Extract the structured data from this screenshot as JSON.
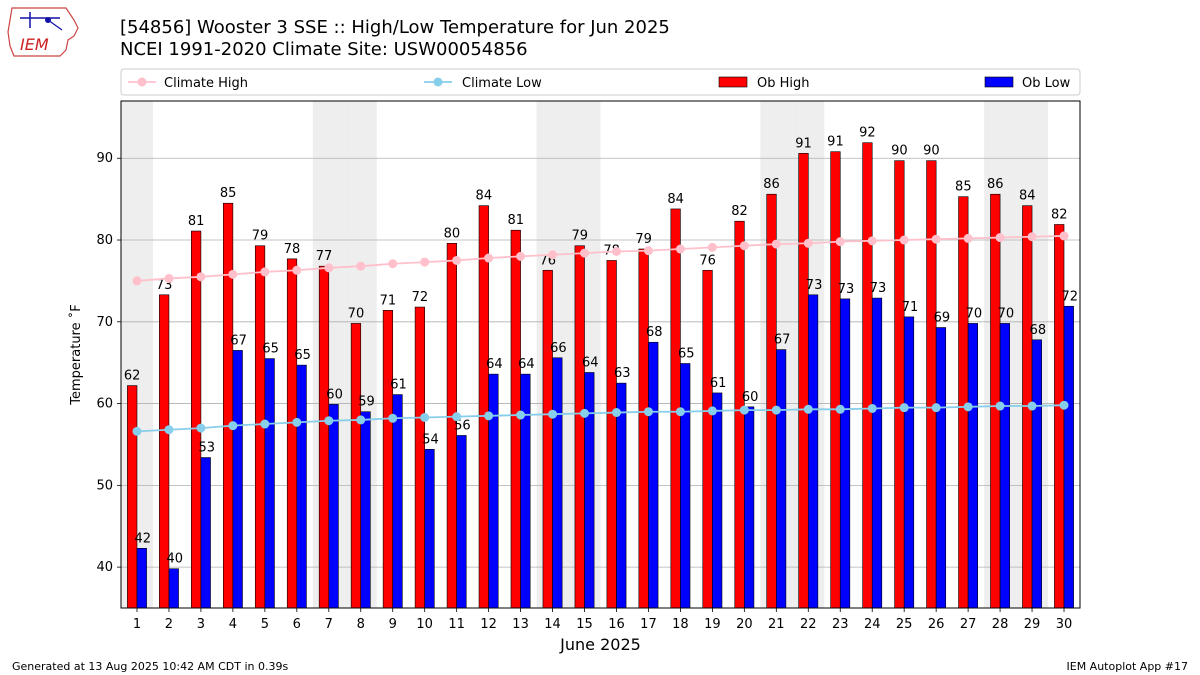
{
  "header": {
    "logo_text": "IEM",
    "title_line1": "[54856] Wooster 3 SSE :: High/Low Temperature for Jun 2025",
    "title_line2": "NCEI 1991-2020 Climate Site: USW00054856"
  },
  "footer": {
    "generated": "Generated at 13 Aug 2025 10:42 AM CDT in 0.39s",
    "app": "IEM Autoplot App #17"
  },
  "colors": {
    "ob_high": "#ff0000",
    "ob_low": "#0000ff",
    "climate_high": "#ffc0cb",
    "climate_low": "#87ceeb",
    "weekend_band": "#eeeeee",
    "grid": "#b0b0b0"
  },
  "chart_data": {
    "type": "bar",
    "title": "[54856] Wooster 3 SSE :: High/Low Temperature for Jun 2025",
    "subtitle": "NCEI 1991-2020 Climate Site: USW00054856",
    "xlabel": "June 2025",
    "ylabel": "Temperature ˚F",
    "ylim": [
      35,
      97
    ],
    "yticks": [
      40,
      50,
      60,
      70,
      80,
      90
    ],
    "grid": true,
    "legend_position": "top",
    "categories": [
      "1",
      "2",
      "3",
      "4",
      "5",
      "6",
      "7",
      "8",
      "9",
      "10",
      "11",
      "12",
      "13",
      "14",
      "15",
      "16",
      "17",
      "18",
      "19",
      "20",
      "21",
      "22",
      "23",
      "24",
      "25",
      "26",
      "27",
      "28",
      "29",
      "30"
    ],
    "shaded_days": [
      1,
      7,
      8,
      14,
      15,
      21,
      22,
      28,
      29
    ],
    "series": [
      {
        "name": "Ob High",
        "kind": "bar",
        "values": [
          62,
          73,
          81,
          85,
          79,
          78,
          77,
          70,
          71,
          72,
          80,
          84,
          81,
          76,
          79,
          78,
          79,
          84,
          76,
          82,
          86,
          91,
          91,
          92,
          90,
          90,
          85,
          86,
          84,
          82
        ],
        "heights": [
          62.2,
          73.3,
          81.1,
          84.5,
          79.3,
          77.7,
          76.8,
          69.8,
          71.4,
          71.8,
          79.6,
          84.2,
          81.2,
          76.3,
          79.3,
          77.5,
          78.9,
          83.8,
          76.3,
          82.3,
          85.6,
          90.6,
          90.8,
          91.9,
          89.7,
          89.7,
          85.3,
          85.6,
          84.2,
          81.9
        ],
        "labels_shown": [
          true,
          true,
          true,
          true,
          true,
          true,
          true,
          true,
          true,
          true,
          true,
          true,
          true,
          true,
          true,
          true,
          true,
          true,
          true,
          true,
          true,
          true,
          true,
          true,
          true,
          true,
          true,
          true,
          true,
          true
        ]
      },
      {
        "name": "Ob Low",
        "kind": "bar",
        "values": [
          42,
          40,
          53,
          67,
          65,
          65,
          60,
          59,
          61,
          54,
          56,
          64,
          64,
          66,
          64,
          63,
          68,
          65,
          61,
          60,
          67,
          73,
          73,
          73,
          71,
          69,
          70,
          70,
          68,
          72
        ],
        "heights": [
          42.3,
          39.8,
          53.4,
          66.5,
          65.5,
          64.7,
          59.9,
          59.0,
          61.1,
          54.4,
          56.1,
          63.6,
          63.6,
          65.6,
          63.8,
          62.5,
          67.5,
          64.9,
          61.3,
          59.6,
          66.6,
          73.3,
          72.8,
          72.9,
          70.6,
          69.3,
          69.8,
          69.8,
          67.8,
          71.9
        ],
        "labels_shown": [
          true,
          true,
          true,
          true,
          true,
          true,
          true,
          true,
          true,
          true,
          true,
          true,
          true,
          true,
          true,
          true,
          true,
          true,
          true,
          true,
          true,
          true,
          true,
          true,
          true,
          true,
          true,
          true,
          true,
          true
        ]
      },
      {
        "name": "Climate High",
        "kind": "line",
        "values": [
          75.0,
          75.3,
          75.5,
          75.8,
          76.1,
          76.3,
          76.6,
          76.8,
          77.1,
          77.3,
          77.5,
          77.8,
          78.0,
          78.2,
          78.4,
          78.6,
          78.7,
          78.9,
          79.1,
          79.3,
          79.5,
          79.6,
          79.8,
          79.9,
          80.0,
          80.1,
          80.2,
          80.3,
          80.4,
          80.5
        ]
      },
      {
        "name": "Climate Low",
        "kind": "line",
        "values": [
          56.6,
          56.8,
          57.0,
          57.3,
          57.5,
          57.7,
          57.9,
          58.0,
          58.2,
          58.3,
          58.4,
          58.5,
          58.6,
          58.7,
          58.8,
          58.9,
          59.0,
          59.0,
          59.1,
          59.2,
          59.2,
          59.3,
          59.3,
          59.4,
          59.5,
          59.5,
          59.6,
          59.7,
          59.7,
          59.8
        ]
      }
    ]
  }
}
